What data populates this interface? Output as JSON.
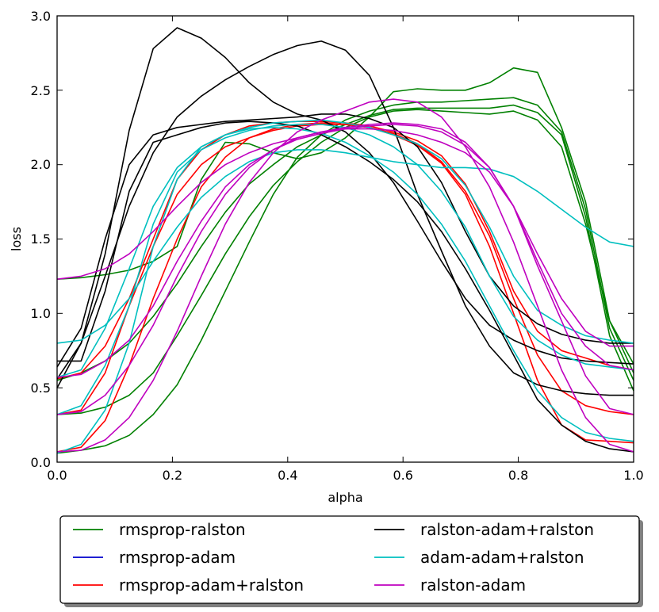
{
  "chart_data": {
    "type": "line",
    "title": "",
    "xlabel": "alpha",
    "ylabel": "loss",
    "xlim": [
      0.0,
      1.0
    ],
    "ylim": [
      0.0,
      3.0
    ],
    "grid": false,
    "legend_position": "below",
    "x": [
      0.0,
      0.0417,
      0.0833,
      0.125,
      0.1667,
      0.2083,
      0.25,
      0.2917,
      0.3333,
      0.375,
      0.4167,
      0.4583,
      0.5,
      0.5417,
      0.5833,
      0.625,
      0.6667,
      0.7083,
      0.75,
      0.7917,
      0.8333,
      0.875,
      0.9167,
      0.9583,
      1.0
    ],
    "xticks": [
      "0.0",
      "0.2",
      "0.4",
      "0.6",
      "0.8",
      "1.0"
    ],
    "yticks": [
      "0.0",
      "0.5",
      "1.0",
      "1.5",
      "2.0",
      "2.5",
      "3.0"
    ],
    "series": [
      {
        "name": "rmsprop-ralston",
        "color": "#008000",
        "lines": [
          [
            1.23,
            1.24,
            1.26,
            1.29,
            1.35,
            1.45,
            1.9,
            2.15,
            2.14,
            2.08,
            2.04,
            2.08,
            2.18,
            2.32,
            2.49,
            2.51,
            2.5,
            2.5,
            2.55,
            2.65,
            2.62,
            2.25,
            1.75,
            0.95,
            0.6
          ],
          [
            0.55,
            0.6,
            0.68,
            0.8,
            0.98,
            1.2,
            1.45,
            1.68,
            1.87,
            2.0,
            2.12,
            2.2,
            2.27,
            2.33,
            2.37,
            2.38,
            2.38,
            2.38,
            2.38,
            2.4,
            2.35,
            2.2,
            1.65,
            0.85,
            0.48
          ],
          [
            0.32,
            0.33,
            0.37,
            0.45,
            0.6,
            0.85,
            1.12,
            1.4,
            1.65,
            1.86,
            2.02,
            2.15,
            2.25,
            2.32,
            2.36,
            2.37,
            2.36,
            2.35,
            2.34,
            2.36,
            2.3,
            2.12,
            1.6,
            0.95,
            0.66
          ],
          [
            0.06,
            0.08,
            0.11,
            0.18,
            0.32,
            0.52,
            0.82,
            1.15,
            1.48,
            1.8,
            2.05,
            2.2,
            2.3,
            2.36,
            2.4,
            2.42,
            2.42,
            2.43,
            2.44,
            2.45,
            2.4,
            2.22,
            1.7,
            0.9,
            0.55
          ]
        ]
      },
      {
        "name": "rmsprop-adam",
        "color": "#0000cc",
        "lines": []
      },
      {
        "name": "rmsprop-adam+ralston",
        "color": "#ff0000",
        "lines": [
          [
            0.56,
            0.6,
            0.78,
            1.1,
            1.5,
            1.9,
            2.1,
            2.2,
            2.26,
            2.28,
            2.29,
            2.29,
            2.28,
            2.26,
            2.22,
            2.16,
            2.06,
            1.87,
            1.55,
            1.15,
            0.88,
            0.75,
            0.7,
            0.65,
            0.62
          ],
          [
            0.32,
            0.35,
            0.6,
            1.05,
            1.45,
            1.8,
            2.0,
            2.12,
            2.18,
            2.23,
            2.26,
            2.27,
            2.27,
            2.25,
            2.21,
            2.14,
            2.02,
            1.82,
            1.52,
            1.1,
            0.72,
            0.48,
            0.38,
            0.34,
            0.32
          ],
          [
            0.07,
            0.1,
            0.28,
            0.65,
            1.1,
            1.5,
            1.85,
            2.05,
            2.18,
            2.24,
            2.27,
            2.28,
            2.27,
            2.25,
            2.2,
            2.13,
            2.01,
            1.8,
            1.45,
            1.0,
            0.55,
            0.25,
            0.15,
            0.14,
            0.13
          ]
        ]
      },
      {
        "name": "ralston-adam+ralston",
        "color": "#000000",
        "lines": [
          [
            0.5,
            0.8,
            1.4,
            2.23,
            2.78,
            2.92,
            2.85,
            2.72,
            2.55,
            2.42,
            2.34,
            2.3,
            2.22,
            2.08,
            1.88,
            1.62,
            1.35,
            1.1,
            0.92,
            0.82,
            0.75,
            0.7,
            0.68,
            0.67,
            0.66
          ],
          [
            0.64,
            0.9,
            1.5,
            2.0,
            2.2,
            2.25,
            2.27,
            2.29,
            2.3,
            2.31,
            2.32,
            2.34,
            2.34,
            2.31,
            2.25,
            2.12,
            1.88,
            1.55,
            1.25,
            1.05,
            0.93,
            0.86,
            0.82,
            0.8,
            0.8
          ],
          [
            0.56,
            0.8,
            1.25,
            1.72,
            2.08,
            2.32,
            2.46,
            2.57,
            2.66,
            2.74,
            2.8,
            2.83,
            2.77,
            2.6,
            2.25,
            1.8,
            1.42,
            1.05,
            0.78,
            0.6,
            0.52,
            0.48,
            0.46,
            0.45,
            0.45
          ],
          [
            0.68,
            0.68,
            1.15,
            1.82,
            2.15,
            2.2,
            2.25,
            2.28,
            2.29,
            2.28,
            2.26,
            2.2,
            2.12,
            2.02,
            1.9,
            1.75,
            1.55,
            1.3,
            1.02,
            0.72,
            0.42,
            0.25,
            0.14,
            0.09,
            0.07
          ]
        ]
      },
      {
        "name": "adam-adam+ralston",
        "color": "#00bfbf",
        "lines": [
          [
            0.8,
            0.82,
            0.92,
            1.1,
            1.35,
            1.58,
            1.78,
            1.92,
            2.02,
            2.08,
            2.1,
            2.1,
            2.08,
            2.05,
            2.02,
            2.0,
            1.98,
            1.98,
            1.97,
            1.92,
            1.82,
            1.7,
            1.58,
            1.48,
            1.45
          ],
          [
            0.57,
            0.62,
            0.9,
            1.3,
            1.72,
            1.98,
            2.12,
            2.2,
            2.25,
            2.28,
            2.29,
            2.3,
            2.28,
            2.25,
            2.2,
            2.14,
            2.04,
            1.86,
            1.58,
            1.25,
            1.02,
            0.92,
            0.85,
            0.82,
            0.8
          ],
          [
            0.32,
            0.38,
            0.65,
            1.05,
            1.6,
            1.95,
            2.1,
            2.18,
            2.23,
            2.26,
            2.27,
            2.27,
            2.25,
            2.2,
            2.12,
            2.0,
            1.82,
            1.58,
            1.25,
            0.98,
            0.82,
            0.72,
            0.66,
            0.64,
            0.62
          ],
          [
            0.06,
            0.12,
            0.35,
            0.8,
            1.45,
            1.9,
            2.12,
            2.2,
            2.24,
            2.25,
            2.24,
            2.21,
            2.15,
            2.06,
            1.95,
            1.8,
            1.6,
            1.35,
            1.05,
            0.75,
            0.48,
            0.3,
            0.2,
            0.16,
            0.14
          ]
        ]
      },
      {
        "name": "ralston-adam",
        "color": "#bf00bf",
        "lines": [
          [
            1.23,
            1.25,
            1.3,
            1.4,
            1.55,
            1.72,
            1.88,
            2.0,
            2.08,
            2.14,
            2.18,
            2.22,
            2.25,
            2.27,
            2.28,
            2.27,
            2.24,
            2.15,
            1.98,
            1.72,
            1.4,
            1.1,
            0.88,
            0.78,
            0.78
          ],
          [
            0.57,
            0.59,
            0.68,
            0.82,
            1.05,
            1.35,
            1.62,
            1.85,
            2.0,
            2.1,
            2.17,
            2.21,
            2.24,
            2.26,
            2.27,
            2.26,
            2.22,
            2.13,
            1.98,
            1.72,
            1.35,
            1.0,
            0.78,
            0.65,
            0.62
          ],
          [
            0.32,
            0.34,
            0.45,
            0.65,
            0.92,
            1.25,
            1.55,
            1.8,
            1.98,
            2.1,
            2.18,
            2.22,
            2.24,
            2.24,
            2.23,
            2.2,
            2.15,
            2.08,
            1.95,
            1.72,
            1.32,
            0.95,
            0.58,
            0.36,
            0.32
          ],
          [
            0.07,
            0.08,
            0.15,
            0.3,
            0.55,
            0.88,
            1.25,
            1.6,
            1.88,
            2.08,
            2.22,
            2.3,
            2.36,
            2.42,
            2.44,
            2.42,
            2.32,
            2.12,
            1.85,
            1.48,
            1.05,
            0.62,
            0.3,
            0.12,
            0.07
          ]
        ]
      }
    ]
  }
}
